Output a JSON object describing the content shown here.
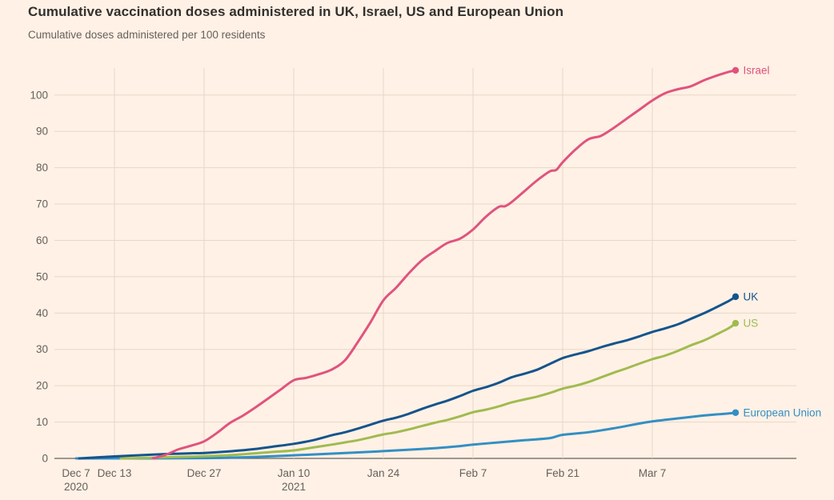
{
  "page": {
    "background_color": "#fff1e5",
    "title_color": "#33302e",
    "muted_text_color": "#66605c"
  },
  "header": {
    "title": "Cumulative vaccination doses administered in UK, Israel, US and European Union",
    "subtitle": "Cumulative doses administered per 100 residents"
  },
  "chart_data": {
    "type": "line",
    "title": "Cumulative vaccination doses administered in UK, Israel, US and European Union",
    "ylabel": "Cumulative doses administered per 100 residents",
    "x_unit": "days since Dec 7 2020",
    "ylim": [
      0,
      110
    ],
    "grid": {
      "gridline_color": "#e7d7c9",
      "axis_color": "#66605c",
      "label_color": "#66605c"
    },
    "y_axis": {
      "ticks": [
        0,
        10,
        20,
        30,
        40,
        50,
        60,
        70,
        80,
        90,
        100
      ]
    },
    "x_ticks": [
      {
        "day": 0,
        "label": "Dec 7",
        "sublabel": "2020",
        "gridline": false
      },
      {
        "day": 6,
        "label": "Dec 13",
        "sublabel": "",
        "gridline": true
      },
      {
        "day": 20,
        "label": "Dec 27",
        "sublabel": "",
        "gridline": true
      },
      {
        "day": 34,
        "label": "Jan 10",
        "sublabel": "2021",
        "gridline": true
      },
      {
        "day": 48,
        "label": "Jan 24",
        "sublabel": "",
        "gridline": true
      },
      {
        "day": 62,
        "label": "Feb 7",
        "sublabel": "",
        "gridline": true
      },
      {
        "day": 76,
        "label": "Feb 21",
        "sublabel": "",
        "gridline": true
      },
      {
        "day": 90,
        "label": "Mar 7",
        "sublabel": "",
        "gridline": true
      }
    ],
    "legend_position": "line-end-labels",
    "series": [
      {
        "name": "European Union",
        "color": "#338fc3",
        "points": [
          [
            0,
            0
          ],
          [
            6,
            0
          ],
          [
            10,
            0
          ],
          [
            14,
            0.02
          ],
          [
            20,
            0.08
          ],
          [
            25,
            0.25
          ],
          [
            30,
            0.55
          ],
          [
            34,
            0.85
          ],
          [
            38,
            1.15
          ],
          [
            42,
            1.5
          ],
          [
            46,
            1.8
          ],
          [
            48,
            2.0
          ],
          [
            52,
            2.4
          ],
          [
            56,
            2.8
          ],
          [
            60,
            3.4
          ],
          [
            62,
            3.8
          ],
          [
            66,
            4.4
          ],
          [
            70,
            5.0
          ],
          [
            74,
            5.6
          ],
          [
            76,
            6.5
          ],
          [
            80,
            7.2
          ],
          [
            84,
            8.3
          ],
          [
            88,
            9.6
          ],
          [
            90,
            10.2
          ],
          [
            94,
            11.0
          ],
          [
            98,
            11.8
          ],
          [
            100,
            12.1
          ],
          [
            102,
            12.4
          ],
          [
            103,
            12.6
          ]
        ]
      },
      {
        "name": "US",
        "color": "#a0bb4f",
        "points": [
          [
            7,
            0
          ],
          [
            10,
            0.1
          ],
          [
            13,
            0.25
          ],
          [
            16,
            0.4
          ],
          [
            20,
            0.6
          ],
          [
            23,
            0.8
          ],
          [
            25,
            1.0
          ],
          [
            28,
            1.4
          ],
          [
            31,
            1.8
          ],
          [
            34,
            2.2
          ],
          [
            37,
            3.0
          ],
          [
            40,
            3.8
          ],
          [
            42,
            4.4
          ],
          [
            44,
            5.0
          ],
          [
            46,
            5.8
          ],
          [
            48,
            6.6
          ],
          [
            50,
            7.2
          ],
          [
            52,
            8.0
          ],
          [
            54,
            8.9
          ],
          [
            56,
            9.8
          ],
          [
            58,
            10.6
          ],
          [
            60,
            11.6
          ],
          [
            62,
            12.7
          ],
          [
            64,
            13.4
          ],
          [
            66,
            14.3
          ],
          [
            68,
            15.4
          ],
          [
            70,
            16.2
          ],
          [
            72,
            17.0
          ],
          [
            74,
            18.0
          ],
          [
            76,
            19.2
          ],
          [
            78,
            20.0
          ],
          [
            80,
            21.0
          ],
          [
            82,
            22.3
          ],
          [
            84,
            23.6
          ],
          [
            86,
            24.8
          ],
          [
            88,
            26.1
          ],
          [
            90,
            27.3
          ],
          [
            92,
            28.3
          ],
          [
            94,
            29.6
          ],
          [
            96,
            31.1
          ],
          [
            98,
            32.4
          ],
          [
            100,
            34.1
          ],
          [
            102,
            35.9
          ],
          [
            103,
            37.2
          ]
        ]
      },
      {
        "name": "UK",
        "color": "#15548c",
        "points": [
          [
            0.5,
            0
          ],
          [
            4,
            0.35
          ],
          [
            6,
            0.55
          ],
          [
            9,
            0.8
          ],
          [
            12,
            1.05
          ],
          [
            15,
            1.25
          ],
          [
            18,
            1.4
          ],
          [
            20,
            1.5
          ],
          [
            23,
            1.8
          ],
          [
            25,
            2.1
          ],
          [
            28,
            2.6
          ],
          [
            31,
            3.3
          ],
          [
            34,
            4.0
          ],
          [
            37,
            5.0
          ],
          [
            40,
            6.4
          ],
          [
            42,
            7.2
          ],
          [
            44,
            8.2
          ],
          [
            46,
            9.3
          ],
          [
            48,
            10.4
          ],
          [
            50,
            11.2
          ],
          [
            52,
            12.3
          ],
          [
            54,
            13.6
          ],
          [
            56,
            14.8
          ],
          [
            58,
            15.9
          ],
          [
            60,
            17.2
          ],
          [
            62,
            18.6
          ],
          [
            64,
            19.6
          ],
          [
            66,
            20.8
          ],
          [
            68,
            22.3
          ],
          [
            70,
            23.3
          ],
          [
            72,
            24.4
          ],
          [
            74,
            26.0
          ],
          [
            76,
            27.6
          ],
          [
            78,
            28.6
          ],
          [
            80,
            29.5
          ],
          [
            82,
            30.6
          ],
          [
            84,
            31.6
          ],
          [
            86,
            32.5
          ],
          [
            88,
            33.6
          ],
          [
            90,
            34.8
          ],
          [
            92,
            35.8
          ],
          [
            94,
            36.9
          ],
          [
            96,
            38.4
          ],
          [
            98,
            39.9
          ],
          [
            100,
            41.6
          ],
          [
            102,
            43.4
          ],
          [
            103,
            44.5
          ]
        ]
      },
      {
        "name": "Israel",
        "color": "#e0537f",
        "points": [
          [
            12,
            0
          ],
          [
            14,
            1.0
          ],
          [
            16,
            2.5
          ],
          [
            18,
            3.5
          ],
          [
            20,
            4.7
          ],
          [
            22,
            7.0
          ],
          [
            24,
            9.7
          ],
          [
            26,
            11.7
          ],
          [
            28,
            14.0
          ],
          [
            30,
            16.5
          ],
          [
            32,
            19.0
          ],
          [
            34,
            21.5
          ],
          [
            36,
            22.2
          ],
          [
            38,
            23.2
          ],
          [
            40,
            24.5
          ],
          [
            42,
            27.0
          ],
          [
            44,
            32.0
          ],
          [
            46,
            37.5
          ],
          [
            48,
            43.5
          ],
          [
            50,
            47.0
          ],
          [
            52,
            51.0
          ],
          [
            54,
            54.5
          ],
          [
            56,
            57.0
          ],
          [
            58,
            59.3
          ],
          [
            60,
            60.5
          ],
          [
            62,
            63.0
          ],
          [
            64,
            66.5
          ],
          [
            66,
            69.2
          ],
          [
            67,
            69.4
          ],
          [
            68,
            70.5
          ],
          [
            70,
            73.5
          ],
          [
            72,
            76.5
          ],
          [
            74,
            79.0
          ],
          [
            75,
            79.4
          ],
          [
            76,
            81.5
          ],
          [
            78,
            85.0
          ],
          [
            80,
            87.8
          ],
          [
            82,
            88.8
          ],
          [
            84,
            91.0
          ],
          [
            86,
            93.5
          ],
          [
            88,
            96.0
          ],
          [
            90,
            98.5
          ],
          [
            92,
            100.5
          ],
          [
            94,
            101.6
          ],
          [
            96,
            102.4
          ],
          [
            98,
            104.0
          ],
          [
            100,
            105.3
          ],
          [
            102,
            106.4
          ],
          [
            103,
            106.8
          ]
        ]
      }
    ]
  }
}
